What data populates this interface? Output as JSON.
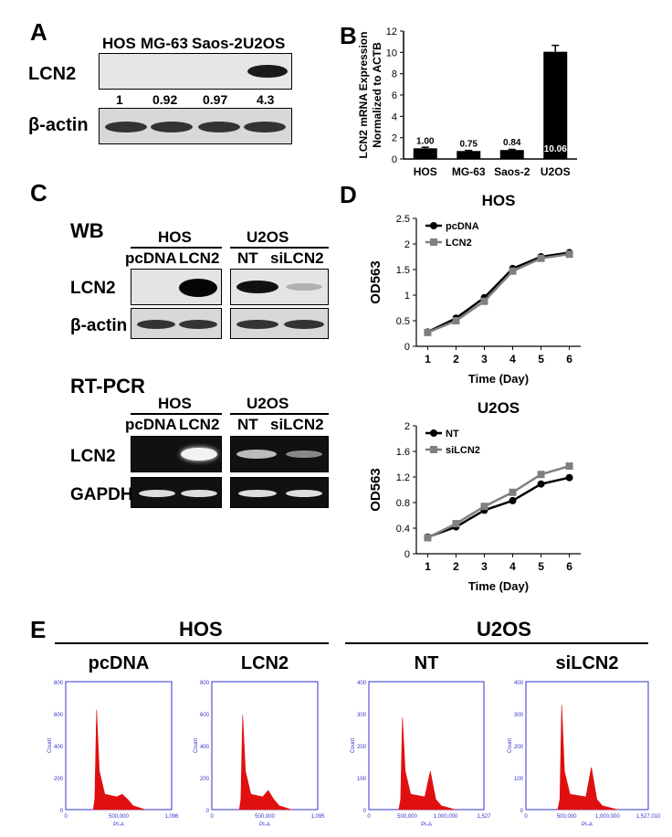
{
  "panels": {
    "a": "A",
    "b": "B",
    "c": "C",
    "d": "D",
    "e": "E"
  },
  "panel_a": {
    "lanes": [
      "HOS",
      "MG-63",
      "Saos-2",
      "U2OS"
    ],
    "row_labels": [
      "LCN2",
      "β-actin"
    ],
    "quant": [
      "1",
      "0.92",
      "0.97",
      "4.3"
    ],
    "band_intensity": [
      0.05,
      0.02,
      0.03,
      0.9
    ]
  },
  "panel_c": {
    "wb_title": "WB",
    "rt_title": "RT-PCR",
    "group_hos": "HOS",
    "group_u2os": "U2OS",
    "hos_lanes": [
      "pcDNA",
      "LCN2"
    ],
    "u2os_lanes": [
      "NT",
      "siLCN2"
    ],
    "wb_rows": [
      "LCN2",
      "β-actin"
    ],
    "rt_rows": [
      "LCN2",
      "GAPDH"
    ]
  },
  "chart_data": [
    {
      "type": "bar",
      "panel": "B",
      "categories": [
        "HOS",
        "MG-63",
        "Saos-2",
        "U2OS"
      ],
      "values": [
        1.0,
        0.75,
        0.84,
        10.06
      ],
      "value_labels": [
        "1.00",
        "0.75",
        "0.84",
        "10.06"
      ],
      "errors": [
        0.1,
        0.05,
        0.06,
        0.6
      ],
      "ylabel": "LCN2 mRNA Expression Normalized to ACTB",
      "ylim": [
        0,
        12
      ],
      "yticks": [
        0,
        2,
        4,
        6,
        8,
        10,
        12
      ],
      "color": "#000000"
    },
    {
      "type": "line",
      "panel": "D-HOS",
      "title": "HOS",
      "xlabel": "Time (Day)",
      "ylabel": "OD563",
      "x": [
        1,
        2,
        3,
        4,
        5,
        6
      ],
      "ylim": [
        0,
        2.5
      ],
      "yticks": [
        "0",
        "0.5",
        "1",
        "1.5",
        "2",
        "2.5"
      ],
      "legend": "top-left",
      "series": [
        {
          "name": "pcDNA",
          "color": "#000000",
          "marker": "circle",
          "values": [
            0.28,
            0.55,
            0.95,
            1.52,
            1.75,
            1.83
          ]
        },
        {
          "name": "LCN2",
          "color": "#808080",
          "marker": "square",
          "values": [
            0.27,
            0.5,
            0.88,
            1.47,
            1.72,
            1.8
          ]
        }
      ]
    },
    {
      "type": "line",
      "panel": "D-U2OS",
      "title": "U2OS",
      "xlabel": "Time (Day)",
      "ylabel": "OD563",
      "x": [
        1,
        2,
        3,
        4,
        5,
        6
      ],
      "ylim": [
        0,
        2
      ],
      "yticks": [
        "0",
        "0.4",
        "0.8",
        "1.2",
        "1.6",
        "2"
      ],
      "legend": "top-left",
      "series": [
        {
          "name": "NT",
          "color": "#000000",
          "marker": "circle",
          "values": [
            0.26,
            0.42,
            0.68,
            0.83,
            1.09,
            1.19
          ]
        },
        {
          "name": "siLCN2",
          "color": "#808080",
          "marker": "square",
          "values": [
            0.25,
            0.47,
            0.74,
            0.96,
            1.24,
            1.37
          ]
        }
      ]
    }
  ],
  "panel_e": {
    "group_hos": "HOS",
    "group_u2os": "U2OS",
    "axis_x": "PI-A",
    "axis_y": "Count",
    "histograms": [
      {
        "title": "pcDNA",
        "yticks": [
          "0",
          "200",
          "400",
          "600",
          "800"
        ],
        "xticks": [
          "0",
          "500,000",
          "1,096"
        ],
        "peaks": [
          0.78,
          0.12
        ]
      },
      {
        "title": "LCN2",
        "yticks": [
          "0",
          "200",
          "400",
          "600",
          "800"
        ],
        "xticks": [
          "0",
          "500,000",
          "1,095"
        ],
        "peaks": [
          0.74,
          0.15
        ]
      },
      {
        "title": "NT",
        "yticks": [
          "0",
          "100",
          "200",
          "300",
          "400"
        ],
        "xticks": [
          "0",
          "500,000",
          "1,000,000",
          "1,527"
        ],
        "peaks": [
          0.72,
          0.3
        ]
      },
      {
        "title": "siLCN2",
        "yticks": [
          "0",
          "100",
          "200",
          "300",
          "400"
        ],
        "xticks": [
          "0",
          "500,000",
          "1,000,000",
          "1,527,010"
        ],
        "peaks": [
          0.82,
          0.33
        ]
      }
    ]
  }
}
